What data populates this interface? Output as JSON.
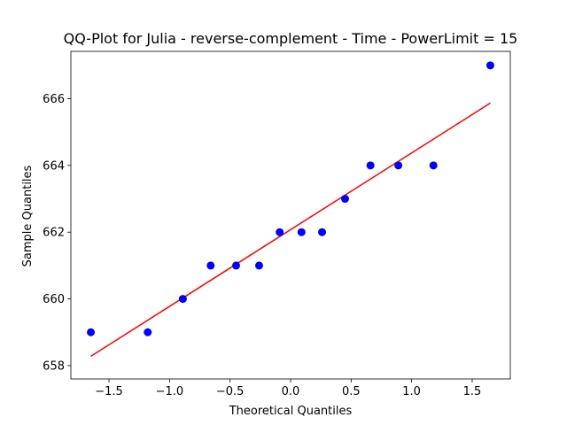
{
  "chart_data": {
    "type": "scatter",
    "title": "QQ-Plot for Julia - reverse-complement - Time - PowerLimit = 15",
    "xlabel": "Theoretical Quantiles",
    "ylabel": "Sample Quantiles",
    "xlim": [
      -1.815,
      1.815
    ],
    "ylim": [
      657.6,
      667.42
    ],
    "xticks": [
      -1.5,
      -1.0,
      -0.5,
      0.0,
      0.5,
      1.0,
      1.5
    ],
    "xtick_labels": [
      "−1.5",
      "−1.0",
      "−0.5",
      "0.0",
      "0.5",
      "1.0",
      "1.5"
    ],
    "yticks": [
      658,
      660,
      662,
      664,
      666
    ],
    "ytick_labels": [
      "658",
      "660",
      "662",
      "664",
      "666"
    ],
    "grid": false,
    "points": {
      "color": "#0000ff",
      "x": [
        -1.65,
        -1.18,
        -0.89,
        -0.66,
        -0.45,
        -0.26,
        -0.09,
        0.09,
        0.26,
        0.45,
        0.66,
        0.89,
        1.18,
        1.65
      ],
      "y": [
        659,
        659,
        660,
        661,
        661,
        661,
        662,
        662,
        662,
        663,
        664,
        664,
        664,
        667
      ]
    },
    "fit_line": {
      "color": "#ff0000",
      "x": [
        -1.65,
        1.65
      ],
      "y": [
        658.28,
        665.87
      ]
    }
  }
}
